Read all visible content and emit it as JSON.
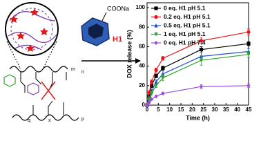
{
  "diagram": {
    "reagent": "COONa",
    "host": "H1",
    "subscripts": [
      "m",
      "n",
      "q",
      "x",
      "p"
    ]
  },
  "chart_data": {
    "type": "line",
    "x": [
      0,
      1,
      2,
      4,
      7,
      24,
      45
    ],
    "series": [
      {
        "name": "0 eq. H1 pH 5.1",
        "color": "#000000",
        "marker": "square",
        "values": [
          0,
          9,
          20,
          30,
          38,
          57,
          63
        ],
        "errors": [
          0,
          2,
          2,
          2,
          2,
          3,
          2
        ]
      },
      {
        "name": "0.2 eq. H1 pH 5.1",
        "color": "#e8141b",
        "marker": "circle",
        "values": [
          0,
          13,
          24,
          36,
          48,
          66,
          75
        ],
        "errors": [
          0,
          2,
          2,
          2,
          2,
          3,
          3
        ]
      },
      {
        "name": "0.5 eq. H1 pH 5.1",
        "color": "#1f4fd6",
        "marker": "triangle",
        "values": [
          0,
          7,
          14,
          24,
          32,
          50,
          55
        ],
        "errors": [
          0,
          2,
          2,
          2,
          3,
          4,
          3
        ]
      },
      {
        "name": "1 eq. H1 pH 5.1",
        "color": "#2aa52a",
        "marker": "triangle-down",
        "values": [
          0,
          6,
          12,
          20,
          28,
          46,
          52
        ],
        "errors": [
          0,
          2,
          2,
          2,
          3,
          5,
          3
        ]
      },
      {
        "name": "0 eq. H1 pH 7.4",
        "color": "#9c4fd8",
        "marker": "diamond",
        "values": [
          0,
          3,
          6,
          9,
          12,
          19,
          20
        ],
        "errors": [
          0,
          1,
          1,
          1,
          1,
          2,
          2
        ]
      }
    ],
    "xlabel": "Time (h)",
    "ylabel": "DOX release (%)",
    "xlim": [
      0,
      45
    ],
    "ylim": [
      0,
      105
    ],
    "xticks": [
      0,
      5,
      10,
      15,
      20,
      25,
      30,
      35,
      40,
      45
    ],
    "yticks": [
      0,
      20,
      40,
      60,
      80,
      100
    ],
    "grid": false,
    "legend": "upper-left"
  }
}
